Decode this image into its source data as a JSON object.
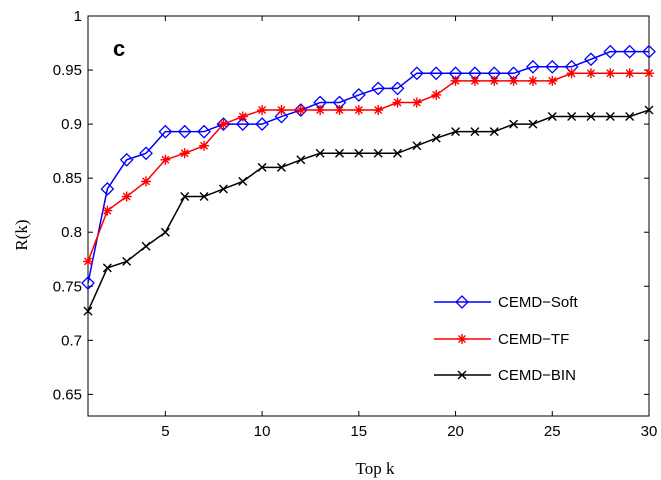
{
  "chart_data": {
    "type": "line",
    "panel_label": "c",
    "xlabel": "Top k",
    "ylabel": "R(k)",
    "xlim": [
      1,
      30
    ],
    "ylim": [
      0.63,
      1.0
    ],
    "xticks": [
      5,
      10,
      15,
      20,
      25,
      30
    ],
    "yticks": [
      0.65,
      0.7,
      0.75,
      0.8,
      0.85,
      0.9,
      0.95,
      1
    ],
    "ytick_labels": [
      "0.65",
      "0.7",
      "0.75",
      "0.8",
      "0.85",
      "0.9",
      "0.95",
      "1"
    ],
    "grid": false,
    "legend_position": "lower-right",
    "x": [
      1,
      2,
      3,
      4,
      5,
      6,
      7,
      8,
      9,
      10,
      11,
      12,
      13,
      14,
      15,
      16,
      17,
      18,
      19,
      20,
      21,
      22,
      23,
      24,
      25,
      26,
      27,
      28,
      29,
      30
    ],
    "series": [
      {
        "name": "CEMD−Soft",
        "color": "#0000ff",
        "marker": "diamond",
        "values": [
          0.753,
          0.84,
          0.867,
          0.873,
          0.893,
          0.893,
          0.893,
          0.9,
          0.9,
          0.9,
          0.907,
          0.913,
          0.92,
          0.92,
          0.927,
          0.933,
          0.933,
          0.947,
          0.947,
          0.947,
          0.947,
          0.947,
          0.947,
          0.953,
          0.953,
          0.953,
          0.96,
          0.967,
          0.967,
          0.967
        ]
      },
      {
        "name": "CEMD−TF",
        "color": "#ff0000",
        "marker": "asterisk",
        "values": [
          0.773,
          0.82,
          0.833,
          0.847,
          0.867,
          0.873,
          0.88,
          0.9,
          0.907,
          0.913,
          0.913,
          0.913,
          0.913,
          0.913,
          0.913,
          0.913,
          0.92,
          0.92,
          0.927,
          0.94,
          0.94,
          0.94,
          0.94,
          0.94,
          0.94,
          0.947,
          0.947,
          0.947,
          0.947,
          0.947
        ]
      },
      {
        "name": "CEMD−BIN",
        "color": "#000000",
        "marker": "cross",
        "values": [
          0.727,
          0.767,
          0.773,
          0.787,
          0.8,
          0.833,
          0.833,
          0.84,
          0.847,
          0.86,
          0.86,
          0.867,
          0.873,
          0.873,
          0.873,
          0.873,
          0.873,
          0.88,
          0.887,
          0.893,
          0.893,
          0.893,
          0.9,
          0.9,
          0.907,
          0.907,
          0.907,
          0.907,
          0.907,
          0.913
        ]
      }
    ]
  }
}
